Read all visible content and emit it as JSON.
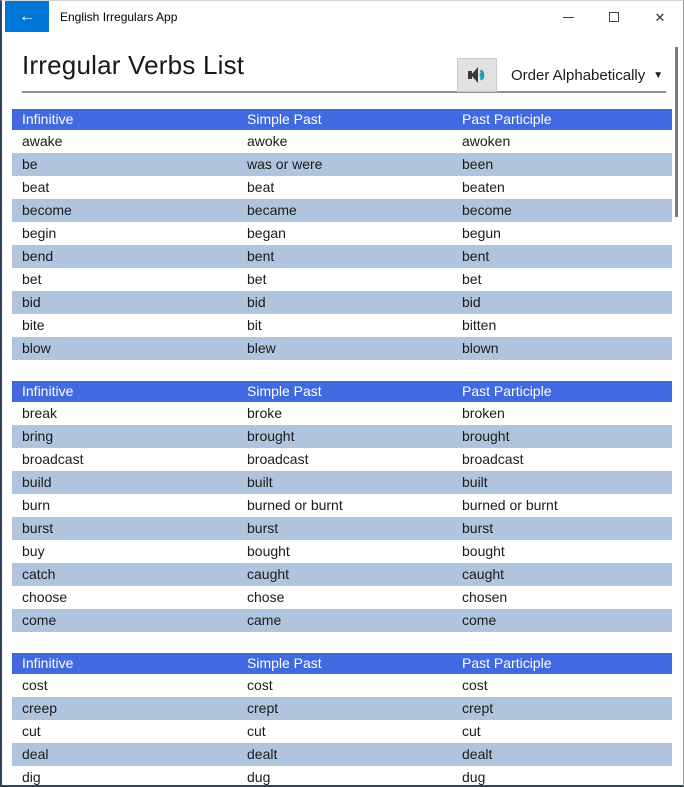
{
  "titlebar": {
    "app_title": "English Irregulars App",
    "back_icon": "←",
    "close_glyph": "✕"
  },
  "header": {
    "title": "Irregular Verbs List",
    "order_button_label": "Order Alphabetically",
    "order_caret": "▼",
    "speaker_icon": "speaker-icon"
  },
  "columns": [
    "Infinitive",
    "Simple Past",
    "Past Participle"
  ],
  "groups": [
    {
      "rows": [
        [
          "awake",
          "awoke",
          "awoken"
        ],
        [
          "be",
          "was or were",
          "been"
        ],
        [
          "beat",
          "beat",
          "beaten"
        ],
        [
          "become",
          "became",
          "become"
        ],
        [
          "begin",
          "began",
          "begun"
        ],
        [
          "bend",
          "bent",
          "bent"
        ],
        [
          "bet",
          "bet",
          "bet"
        ],
        [
          "bid",
          "bid",
          "bid"
        ],
        [
          "bite",
          "bit",
          "bitten"
        ],
        [
          "blow",
          "blew",
          "blown"
        ]
      ]
    },
    {
      "rows": [
        [
          "break",
          "broke",
          "broken"
        ],
        [
          "bring",
          "brought",
          "brought"
        ],
        [
          "broadcast",
          "broadcast",
          "broadcast"
        ],
        [
          "build",
          "built",
          "built"
        ],
        [
          "burn",
          "burned or burnt",
          "burned or burnt"
        ],
        [
          "burst",
          "burst",
          "burst"
        ],
        [
          "buy",
          "bought",
          "bought"
        ],
        [
          "catch",
          "caught",
          "caught"
        ],
        [
          "choose",
          "chose",
          "chosen"
        ],
        [
          "come",
          "came",
          "come"
        ]
      ]
    },
    {
      "rows": [
        [
          "cost",
          "cost",
          "cost"
        ],
        [
          "creep",
          "crept",
          "crept"
        ],
        [
          "cut",
          "cut",
          "cut"
        ],
        [
          "deal",
          "dealt",
          "dealt"
        ],
        [
          "dig",
          "dug",
          "dug"
        ]
      ]
    }
  ],
  "colors": {
    "accent": "#0078D7",
    "table_header_blue": "#4169E1",
    "row_alt_blue": "#B0C4DE",
    "window_border": "#31435C",
    "speaker_wave_teal": "#1B9CB4"
  }
}
